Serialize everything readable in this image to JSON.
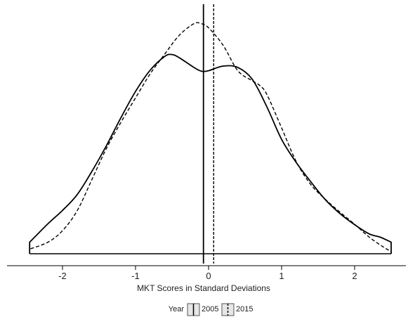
{
  "chart_data": {
    "type": "area",
    "title": "",
    "xlabel": "MKT Scores in Standard Deviations",
    "ylabel": "",
    "xlim": [
      -2.55,
      2.6
    ],
    "ylim": [
      0,
      0.5
    ],
    "x_ticks": [
      -2,
      -1,
      0,
      1,
      2
    ],
    "x_tick_labels": [
      "-2",
      "-1",
      "0",
      "1",
      "2"
    ],
    "grid": false,
    "legend": {
      "position": "bottom",
      "title": "Year",
      "entries": [
        "2005",
        "2015"
      ]
    },
    "series": [
      {
        "name": "2005",
        "line_style": "solid",
        "x": [
          -2.45,
          -2.2,
          -2.0,
          -1.8,
          -1.6,
          -1.4,
          -1.2,
          -1.0,
          -0.8,
          -0.6,
          -0.5,
          -0.4,
          -0.2,
          -0.1,
          0.0,
          0.2,
          0.4,
          0.6,
          0.8,
          1.0,
          1.2,
          1.4,
          1.6,
          1.8,
          2.0,
          2.2,
          2.35,
          2.5
        ],
        "y": [
          0.025,
          0.065,
          0.094,
          0.128,
          0.178,
          0.234,
          0.295,
          0.352,
          0.398,
          0.428,
          0.432,
          0.425,
          0.404,
          0.396,
          0.397,
          0.407,
          0.404,
          0.378,
          0.318,
          0.248,
          0.198,
          0.156,
          0.117,
          0.087,
          0.063,
          0.043,
          0.036,
          0.025
        ]
      },
      {
        "name": "2015",
        "line_style": "dashed",
        "x": [
          -2.45,
          -2.2,
          -2.0,
          -1.8,
          -1.6,
          -1.4,
          -1.2,
          -1.0,
          -0.8,
          -0.6,
          -0.4,
          -0.2,
          -0.1,
          0.0,
          0.2,
          0.4,
          0.6,
          0.7,
          0.8,
          1.0,
          1.2,
          1.4,
          1.6,
          1.8,
          2.0,
          2.2,
          2.4,
          2.5
        ],
        "y": [
          0.01,
          0.025,
          0.05,
          0.093,
          0.16,
          0.228,
          0.285,
          0.338,
          0.39,
          0.433,
          0.474,
          0.499,
          0.499,
          0.49,
          0.452,
          0.397,
          0.375,
          0.365,
          0.345,
          0.273,
          0.2,
          0.15,
          0.118,
          0.09,
          0.064,
          0.036,
          0.014,
          0.005
        ]
      }
    ],
    "vlines": [
      {
        "name": "2005",
        "x": -0.07,
        "line_style": "solid"
      },
      {
        "name": "2015",
        "x": 0.07,
        "line_style": "dashed"
      }
    ]
  }
}
